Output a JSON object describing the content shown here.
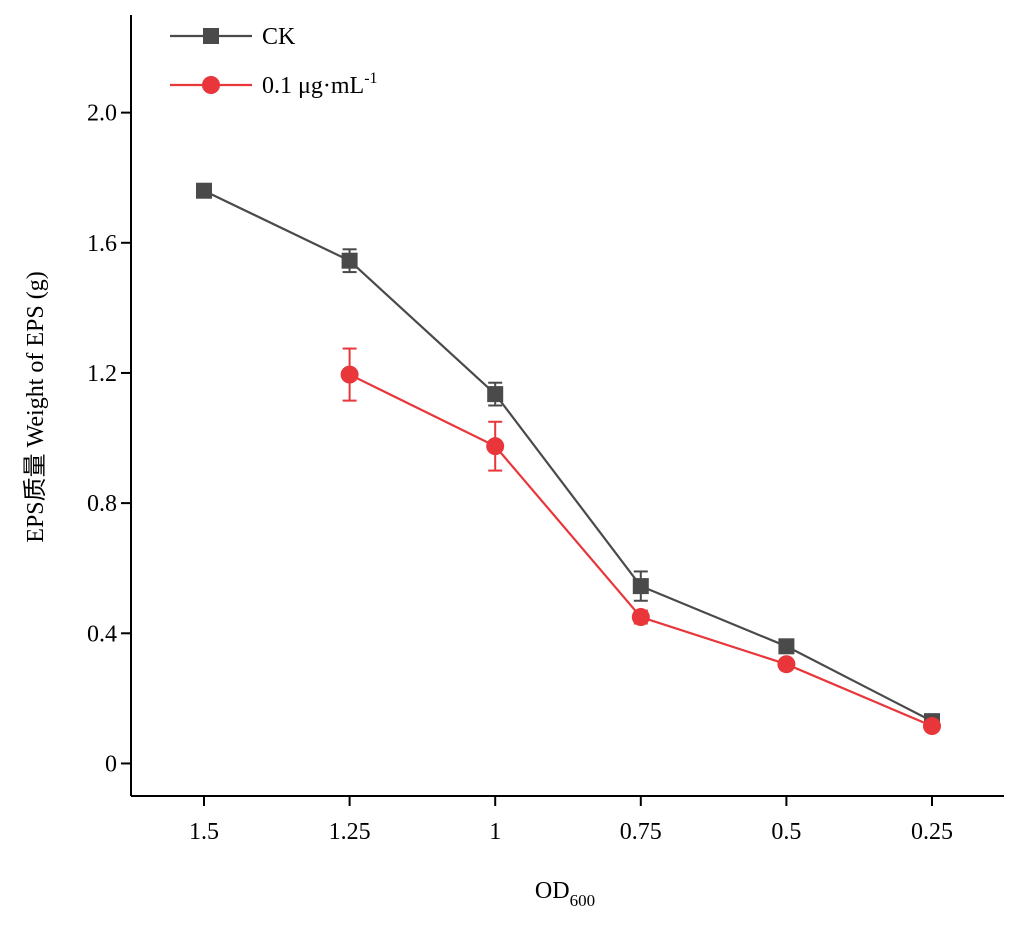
{
  "chart_data": {
    "type": "line",
    "title": "",
    "xlabel": "OD",
    "xlabel_sub": "600",
    "ylabel": "EPS质量 Weight of EPS (g)",
    "categories": [
      "1.5",
      "1.25",
      "1",
      "0.75",
      "0.5",
      "0.25"
    ],
    "ylim": [
      -0.1,
      2.3
    ],
    "yticks": [
      0,
      0.4,
      0.8,
      1.2,
      1.6,
      2.0
    ],
    "ytick_labels": [
      "0",
      "0.4",
      "0.8",
      "1.2",
      "1.6",
      "2.0"
    ],
    "grid": false,
    "legend_position": "top-left",
    "series": [
      {
        "name": "CK",
        "name_sup": "",
        "marker": "square",
        "color": "#4a4a4a",
        "values": [
          1.76,
          1.545,
          1.135,
          0.545,
          0.36,
          0.13
        ],
        "errors": [
          0.012,
          0.035,
          0.035,
          0.045,
          0.02,
          0.01
        ]
      },
      {
        "name": "0.1 μg·mL",
        "name_sup": "-1",
        "marker": "circle",
        "color": "#e8363b",
        "values": [
          null,
          1.195,
          0.975,
          0.45,
          0.305,
          0.115
        ],
        "errors": [
          null,
          0.08,
          0.075,
          0.02,
          0.015,
          0.01
        ]
      }
    ]
  }
}
